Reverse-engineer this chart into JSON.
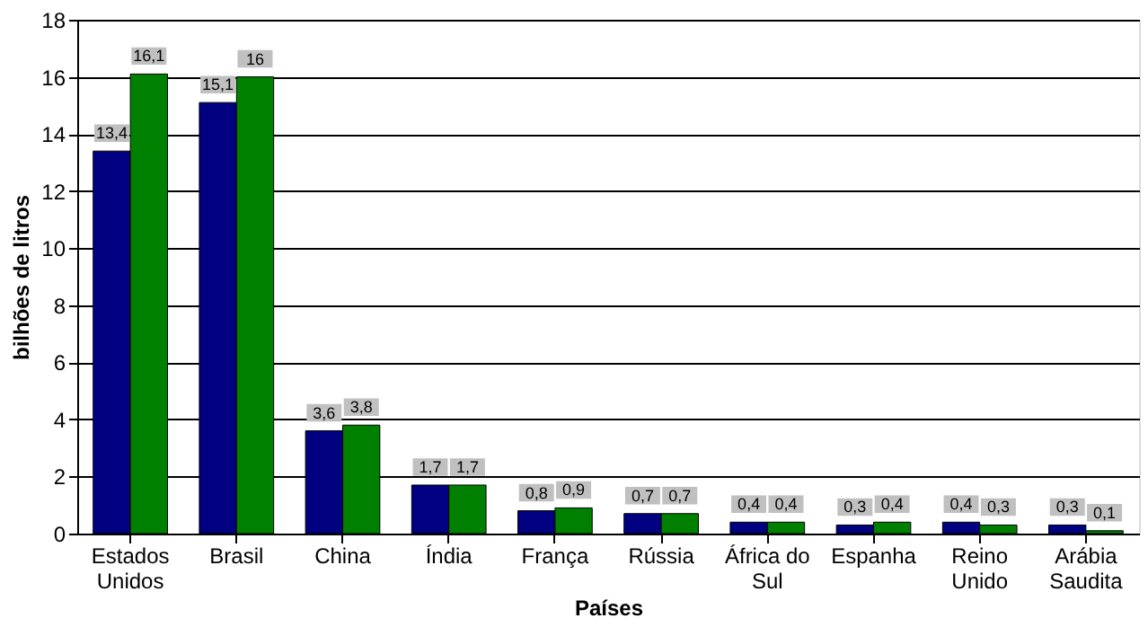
{
  "chart_data": {
    "type": "bar",
    "xlabel": "Países",
    "ylabel": "bilhões de litros",
    "categories": [
      "Estados Unidos",
      "Brasil",
      "China",
      "Índia",
      "França",
      "Rússia",
      "África do Sul",
      "Espanha",
      "Reino Unido",
      "Arábia Saudita"
    ],
    "series": [
      {
        "color": "#000080",
        "values": [
          13.4,
          15.1,
          3.6,
          1.7,
          0.8,
          0.7,
          0.4,
          0.3,
          0.4,
          0.3
        ],
        "value_labels": [
          "13,4",
          "15,1",
          "3,6",
          "1,7",
          "0,8",
          "0,7",
          "0,4",
          "0,3",
          "0,4",
          "0,3"
        ]
      },
      {
        "color": "#008000",
        "values": [
          16.1,
          16,
          3.8,
          1.7,
          0.9,
          0.7,
          0.4,
          0.4,
          0.3,
          0.1
        ],
        "value_labels": [
          "16,1",
          "16",
          "3,8",
          "1,7",
          "0,9",
          "0,7",
          "0,4",
          "0,4",
          "0,3",
          "0,1"
        ]
      }
    ],
    "ylim": [
      0,
      18
    ],
    "yticks": [
      0,
      2,
      4,
      6,
      8,
      10,
      12,
      14,
      16,
      18
    ],
    "grid": "y",
    "legend": false
  }
}
